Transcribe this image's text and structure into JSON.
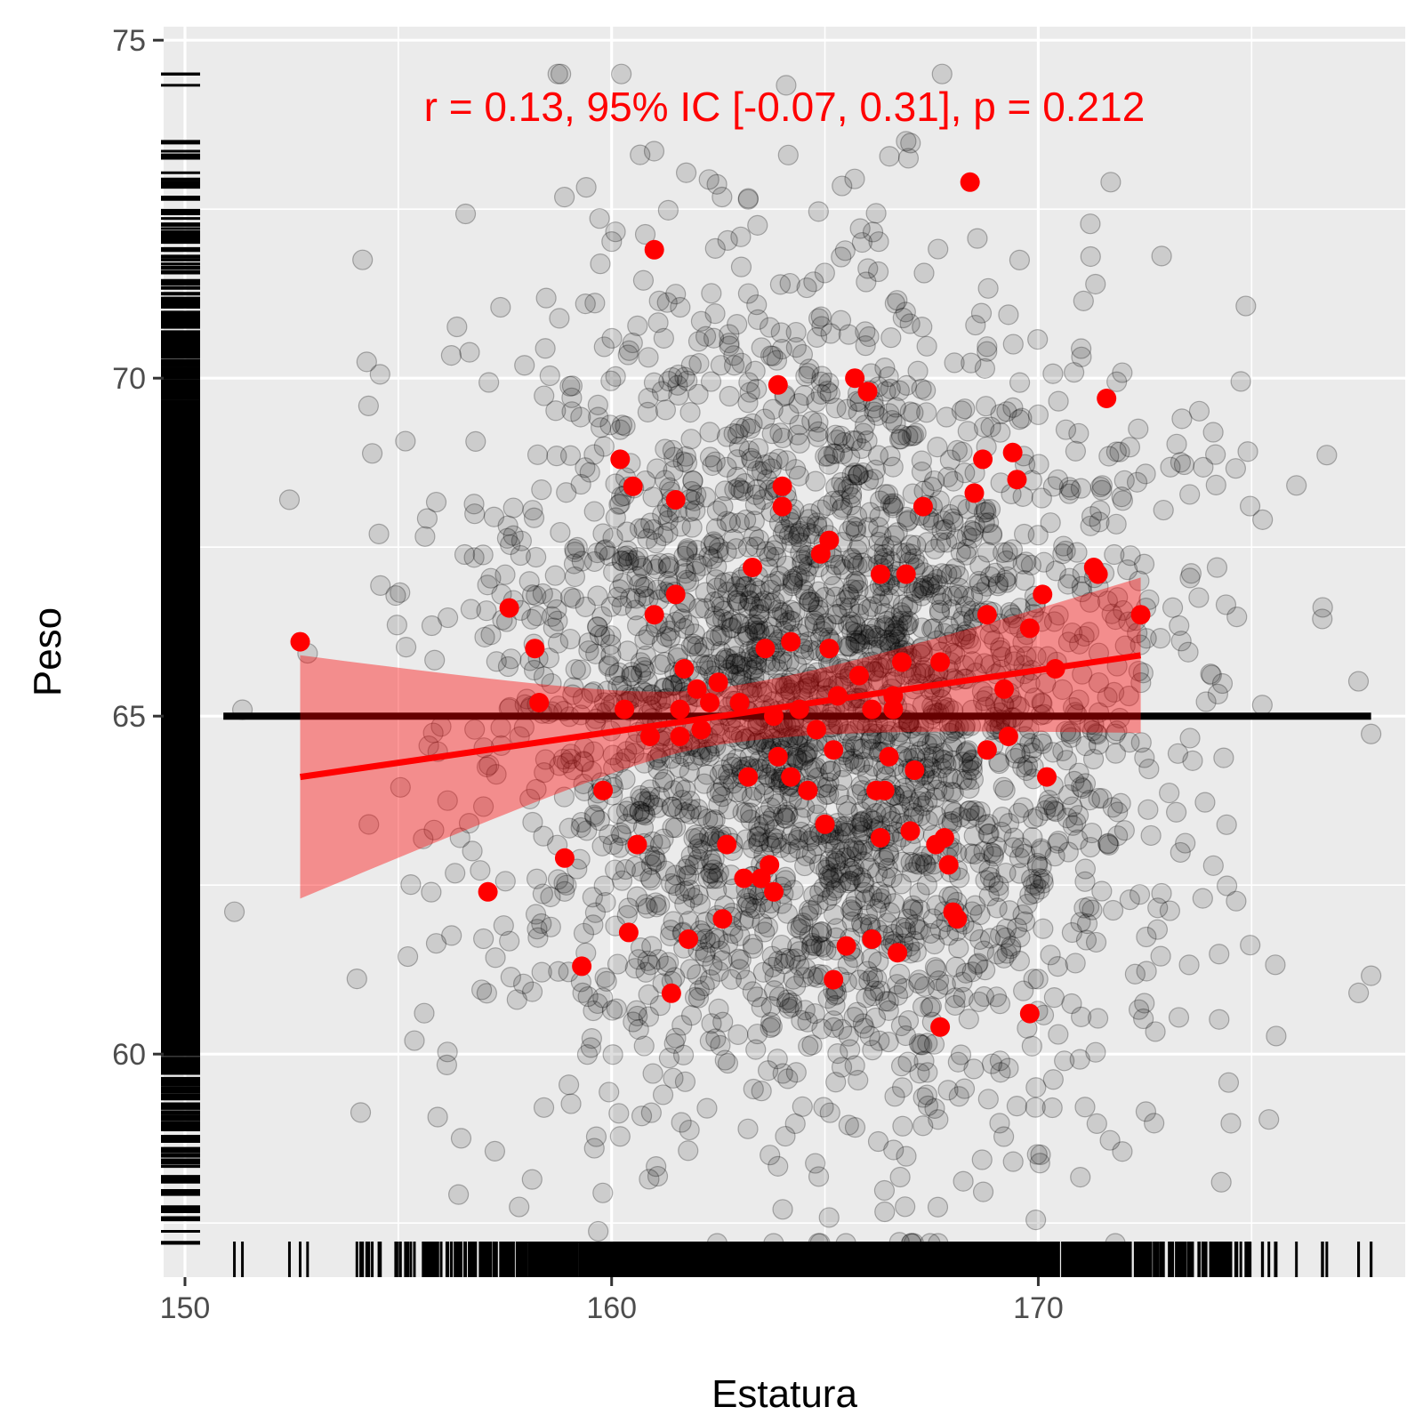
{
  "chart_data": {
    "type": "scatter",
    "xlabel": "Estatura",
    "ylabel": "Peso",
    "xlim": [
      149.5,
      178.6
    ],
    "ylim": [
      56.7,
      75.2
    ],
    "x_ticks": [
      150,
      160,
      170
    ],
    "x_minor_ticks": [
      155,
      165,
      175
    ],
    "y_ticks": [
      60,
      65,
      70,
      75
    ],
    "y_minor_ticks": [
      57.5,
      62.5,
      67.5,
      72.5
    ],
    "grid": true,
    "annotation": {
      "text": "r = 0.13, 95% IC [-0.07, 0.31], p = 0.212",
      "color": "#ff0000"
    },
    "background_cloud": {
      "description": "population sample, black semi-transparent circles",
      "n": 3000,
      "x_mean": 165,
      "x_sd": 4,
      "y_mean": 65,
      "y_sd": 3,
      "x_range": [
        150.8,
        177.8
      ],
      "y_range": [
        57.2,
        74.5
      ],
      "color": "#000000",
      "opacity": 0.13
    },
    "reference_line": {
      "y": 65,
      "x_range": [
        150.9,
        177.8
      ],
      "color": "#000000"
    },
    "sample_series": {
      "color": "#ff0000",
      "points": [
        [
          152.7,
          66.1
        ],
        [
          157.1,
          62.4
        ],
        [
          157.6,
          66.6
        ],
        [
          158.2,
          66.0
        ],
        [
          158.3,
          65.2
        ],
        [
          158.9,
          62.9
        ],
        [
          159.3,
          61.3
        ],
        [
          159.8,
          63.9
        ],
        [
          160.2,
          68.8
        ],
        [
          160.3,
          65.1
        ],
        [
          160.4,
          61.8
        ],
        [
          160.5,
          68.4
        ],
        [
          160.6,
          63.1
        ],
        [
          160.9,
          64.7
        ],
        [
          161.0,
          66.5
        ],
        [
          161.0,
          71.9
        ],
        [
          161.4,
          60.9
        ],
        [
          161.5,
          68.2
        ],
        [
          161.5,
          66.8
        ],
        [
          161.6,
          64.7
        ],
        [
          161.6,
          65.1
        ],
        [
          161.7,
          65.7
        ],
        [
          161.8,
          61.7
        ],
        [
          162.0,
          65.4
        ],
        [
          162.1,
          64.8
        ],
        [
          162.3,
          65.2
        ],
        [
          162.5,
          65.5
        ],
        [
          162.6,
          62.0
        ],
        [
          162.7,
          63.1
        ],
        [
          163.0,
          65.2
        ],
        [
          163.1,
          62.6
        ],
        [
          163.2,
          64.1
        ],
        [
          163.3,
          67.2
        ],
        [
          163.5,
          62.6
        ],
        [
          163.6,
          66.0
        ],
        [
          163.7,
          62.8
        ],
        [
          163.8,
          62.4
        ],
        [
          163.8,
          65.0
        ],
        [
          163.9,
          64.4
        ],
        [
          163.9,
          69.9
        ],
        [
          164.0,
          68.1
        ],
        [
          164.0,
          68.4
        ],
        [
          164.2,
          64.1
        ],
        [
          164.2,
          66.1
        ],
        [
          164.4,
          65.1
        ],
        [
          164.6,
          63.9
        ],
        [
          164.8,
          64.8
        ],
        [
          164.9,
          67.4
        ],
        [
          165.0,
          63.4
        ],
        [
          165.1,
          66.0
        ],
        [
          165.1,
          67.6
        ],
        [
          165.2,
          64.5
        ],
        [
          165.2,
          61.1
        ],
        [
          165.3,
          65.3
        ],
        [
          165.5,
          61.6
        ],
        [
          165.7,
          70.0
        ],
        [
          165.8,
          65.6
        ],
        [
          166.0,
          69.8
        ],
        [
          166.1,
          61.7
        ],
        [
          166.1,
          65.1
        ],
        [
          166.2,
          63.9
        ],
        [
          166.3,
          63.2
        ],
        [
          166.3,
          67.1
        ],
        [
          166.4,
          63.9
        ],
        [
          166.5,
          64.4
        ],
        [
          166.6,
          65.3
        ],
        [
          166.6,
          65.1
        ],
        [
          166.7,
          61.5
        ],
        [
          166.8,
          65.8
        ],
        [
          166.9,
          67.1
        ],
        [
          167.0,
          63.3
        ],
        [
          167.1,
          64.2
        ],
        [
          167.3,
          68.1
        ],
        [
          167.6,
          63.1
        ],
        [
          167.7,
          65.8
        ],
        [
          167.7,
          60.4
        ],
        [
          167.8,
          63.2
        ],
        [
          167.9,
          62.8
        ],
        [
          168.0,
          62.1
        ],
        [
          168.1,
          62.0
        ],
        [
          168.4,
          72.9
        ],
        [
          168.5,
          68.3
        ],
        [
          168.7,
          68.8
        ],
        [
          168.8,
          66.5
        ],
        [
          168.8,
          64.5
        ],
        [
          169.2,
          65.4
        ],
        [
          169.3,
          64.7
        ],
        [
          169.4,
          68.9
        ],
        [
          169.5,
          68.5
        ],
        [
          169.8,
          60.6
        ],
        [
          169.8,
          66.3
        ],
        [
          170.1,
          66.8
        ],
        [
          170.2,
          64.1
        ],
        [
          170.4,
          65.7
        ],
        [
          171.3,
          67.2
        ],
        [
          171.4,
          67.1
        ],
        [
          171.6,
          69.7
        ],
        [
          172.4,
          66.5
        ]
      ]
    },
    "fit_line": {
      "x_range": [
        152.7,
        172.4
      ],
      "y_start": 64.1,
      "y_end": 65.9,
      "ci_lower": [
        62.3,
        64.7
      ],
      "ci_upper": [
        65.9,
        67.0
      ],
      "color": "#ff0000",
      "ribbon_opacity": 0.4
    },
    "rug": {
      "color": "#000000"
    }
  }
}
